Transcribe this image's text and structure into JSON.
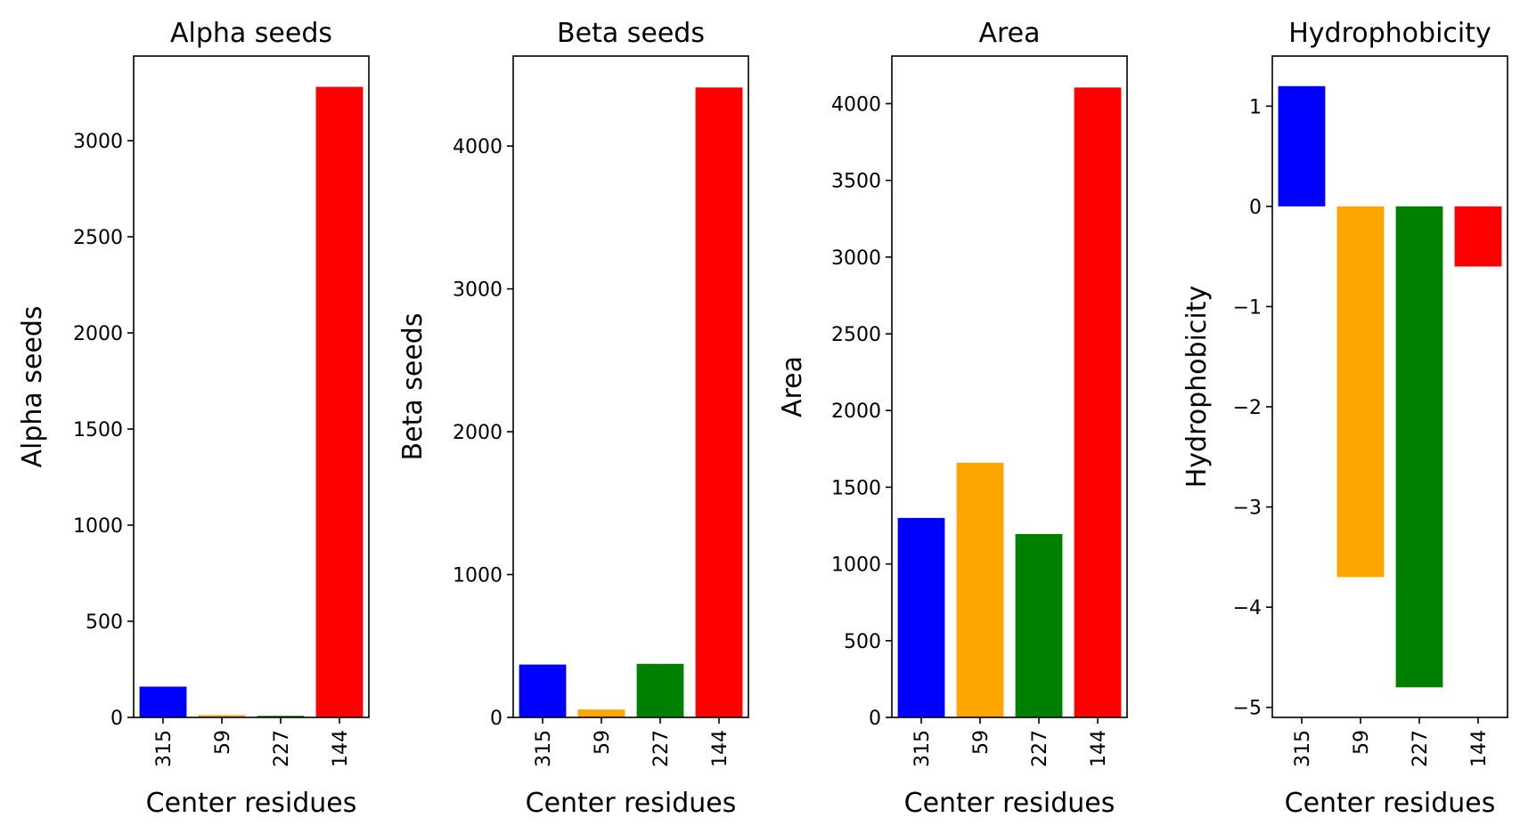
{
  "chart_data": [
    {
      "type": "bar",
      "title": "Alpha seeds",
      "xlabel": "Center residues",
      "ylabel": "Alpha seeds",
      "categories": [
        "315",
        "59",
        "227",
        "144"
      ],
      "values": [
        160,
        12,
        8,
        3280
      ],
      "colors": [
        "#0000ff",
        "#ffa500",
        "#008000",
        "#ff0000"
      ],
      "ylim": [
        0,
        3440
      ],
      "yticks": [
        0,
        500,
        1000,
        1500,
        2000,
        2500,
        3000
      ],
      "ytick_labels": [
        "0",
        "500",
        "1000",
        "1500",
        "2000",
        "2500",
        "3000"
      ]
    },
    {
      "type": "bar",
      "title": "Beta seeds",
      "xlabel": "Center residues",
      "ylabel": "Beta seeds",
      "categories": [
        "315",
        "59",
        "227",
        "144"
      ],
      "values": [
        370,
        55,
        375,
        4410
      ],
      "colors": [
        "#0000ff",
        "#ffa500",
        "#008000",
        "#ff0000"
      ],
      "ylim": [
        0,
        4630
      ],
      "yticks": [
        0,
        1000,
        2000,
        3000,
        4000
      ],
      "ytick_labels": [
        "0",
        "1000",
        "2000",
        "3000",
        "4000"
      ]
    },
    {
      "type": "bar",
      "title": "Area",
      "xlabel": "Center residues",
      "ylabel": "Area",
      "categories": [
        "315",
        "59",
        "227",
        "144"
      ],
      "values": [
        1300,
        1660,
        1195,
        4105
      ],
      "colors": [
        "#0000ff",
        "#ffa500",
        "#008000",
        "#ff0000"
      ],
      "ylim": [
        0,
        4310
      ],
      "yticks": [
        0,
        500,
        1000,
        1500,
        2000,
        2500,
        3000,
        3500,
        4000
      ],
      "ytick_labels": [
        "0",
        "500",
        "1000",
        "1500",
        "2000",
        "2500",
        "3000",
        "3500",
        "4000"
      ]
    },
    {
      "type": "bar",
      "title": "Hydrophobicity",
      "xlabel": "Center residues",
      "ylabel": "Hydrophobicity",
      "categories": [
        "315",
        "59",
        "227",
        "144"
      ],
      "values": [
        1.2,
        -3.7,
        -4.8,
        -0.6
      ],
      "colors": [
        "#0000ff",
        "#ffa500",
        "#008000",
        "#ff0000"
      ],
      "ylim": [
        -5.1,
        1.5
      ],
      "yticks": [
        -5,
        -4,
        -3,
        -2,
        -1,
        0,
        1
      ],
      "ytick_labels": [
        "−5",
        "−4",
        "−3",
        "−2",
        "−1",
        "0",
        "1"
      ]
    }
  ]
}
